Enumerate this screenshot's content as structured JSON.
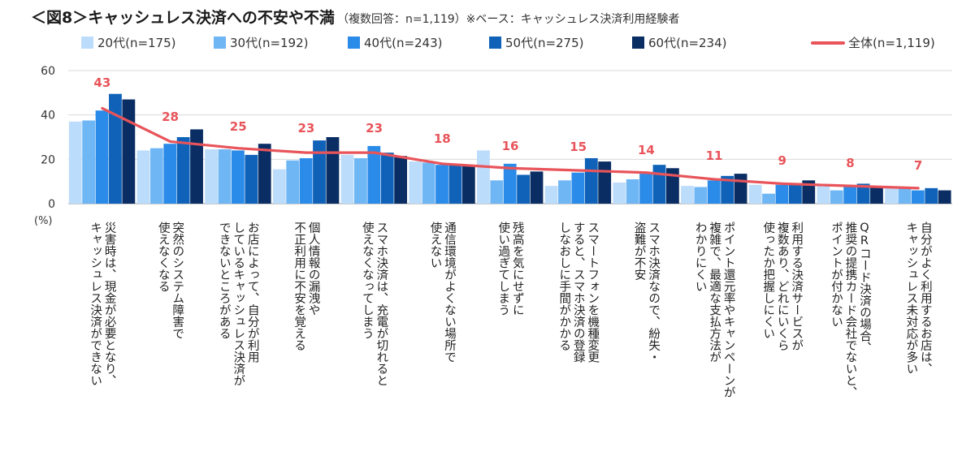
{
  "chart_data": {
    "type": "bar",
    "title": "＜図8＞キャッシュレス決済への不安や不満",
    "subtitle": "（複数回答：n=1,119）※ベース：キャッシュレス決済利用経験者",
    "ylabel": "(%)",
    "ylim": [
      0,
      60
    ],
    "yticks": [
      "0",
      "20",
      "40",
      "60"
    ],
    "grid": true,
    "legend_position": "top",
    "categories": [
      [
        "災害時は、現金が必要となり、",
        "キャッシュレス決済ができない"
      ],
      [
        "突然のシステム障害で",
        "使えなくなる"
      ],
      [
        "お店によって、自分が利用",
        "しているキャッシュレス決済が",
        "できないところがある"
      ],
      [
        "個人情報の漏洩や",
        "不正利用に不安を覚える"
      ],
      [
        "スマホ決済は、充電が切れると",
        "使えなくなってしまう"
      ],
      [
        "通信環境がよくない場所で",
        "使えない"
      ],
      [
        "残高を気にせずに",
        "使い過ぎてしまう"
      ],
      [
        "スマートフォンを機種変更",
        "すると、スマホ決済の登録",
        "しなおしに手間がかかる"
      ],
      [
        "スマホ決済なので、紛失・",
        "盗難が不安"
      ],
      [
        "ポイント還元率やキャンペーンが",
        "複雑で、最適な支払方法が",
        "わかりにくい"
      ],
      [
        "利用する決済サービスが",
        "複数あり、どれにいくら",
        "使ったか把握しにくい"
      ],
      [
        "QRコード決済の場合、",
        "推奨の提携カード会社でないと、",
        "ポイントが付かない"
      ],
      [
        "自分がよく利用するお店は、",
        "キャッシュレス未対応が多い"
      ]
    ],
    "series": [
      {
        "name": "20代(n=175)",
        "color": "#bcdcfb",
        "values": [
          37,
          24,
          24.5,
          15.5,
          22,
          19,
          24,
          8,
          9.5,
          8,
          8.5,
          8.5,
          7.5
        ]
      },
      {
        "name": "30代(n=192)",
        "color": "#6fb6f5",
        "values": [
          37.5,
          25,
          24.5,
          19.5,
          20.5,
          18.5,
          10.5,
          10.5,
          11,
          7.5,
          4.5,
          6,
          7
        ]
      },
      {
        "name": "40代(n=243)",
        "color": "#2b8be8",
        "values": [
          42,
          27,
          24,
          20.5,
          26,
          17.5,
          18,
          14,
          13.5,
          10.5,
          8.5,
          7.5,
          6
        ]
      },
      {
        "name": "50代(n=275)",
        "color": "#0f62b8",
        "values": [
          49.5,
          30,
          22,
          28.5,
          23,
          17.5,
          13,
          20.5,
          17.5,
          12.5,
          8.5,
          9,
          7
        ]
      },
      {
        "name": "60代(n=234)",
        "color": "#0a2d63",
        "values": [
          47,
          33.5,
          27,
          30,
          21.5,
          17.5,
          14.5,
          19,
          16,
          13.5,
          10.5,
          8,
          6
        ]
      }
    ],
    "total": {
      "name": "全体(n=1,119)",
      "color": "#e8545a",
      "values": [
        43,
        28,
        25,
        23,
        23,
        18,
        16,
        15,
        14,
        11,
        9,
        8,
        7
      ],
      "labels": [
        "43",
        "28",
        "25",
        "23",
        "23",
        "18",
        "16",
        "15",
        "14",
        "11",
        "9",
        "8",
        "7"
      ]
    }
  }
}
